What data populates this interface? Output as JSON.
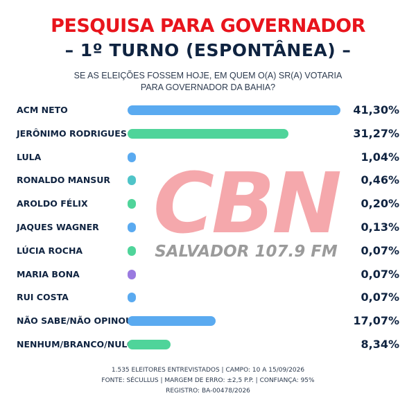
{
  "header": {
    "title_line1": "PESQUISA PARA GOVERNADOR",
    "title_line2": "– 1º TURNO (ESPONTÂNEA) –",
    "question_line1": "SE AS ELEIÇÕES FOSSEM HOJE, EM QUEM O(A) SR(A) VOTARIA",
    "question_line2": "PARA GOVERNADOR DA BAHIA?"
  },
  "watermark": {
    "logo_text": "CBN",
    "tagline": "SALVADOR 107.9 FM",
    "color": "#f0747a"
  },
  "chart_data": {
    "type": "bar",
    "orientation": "horizontal",
    "categories": [
      "ACM NETO",
      "JERÔNIMO RODRIGUES",
      "LULA",
      "RONALDO MANSUR",
      "AROLDO FÉLIX",
      "JAQUES WAGNER",
      "LÚCIA ROCHA",
      "MARIA BONA",
      "RUI COSTA",
      "NÃO SABE/NÃO OPINOU",
      "NENHUM/BRANCO/NULO"
    ],
    "values": [
      41.3,
      31.27,
      1.04,
      0.46,
      0.2,
      0.13,
      0.07,
      0.07,
      0.07,
      17.07,
      8.34
    ],
    "value_labels": [
      "41,30%",
      "31,27%",
      "1,04%",
      "0,46%",
      "0,20%",
      "0,13%",
      "0,07%",
      "0,07%",
      "0,07%",
      "17,07%",
      "8,34%"
    ],
    "colors": [
      "#5aaaf0",
      "#4fd49a",
      "#5aaaf0",
      "#4fc4c8",
      "#4fd49a",
      "#5aaaf0",
      "#4fd49a",
      "#9a7ae0",
      "#5aaaf0",
      "#5aaaf0",
      "#4fd49a"
    ],
    "xlim": [
      0,
      41.3
    ],
    "grid": false,
    "legend": "none"
  },
  "footer": {
    "line1": "1.535 ELEITORES ENTREVISTADOS | CAMPO: 10 A 15/09/2026",
    "line2": "FONTE: SÉCULLUS | MARGEM DE ERRO: ±2,5 P.P. | CONFIANÇA: 95%",
    "line3": "REGISTRO: BA-00478/2026"
  }
}
